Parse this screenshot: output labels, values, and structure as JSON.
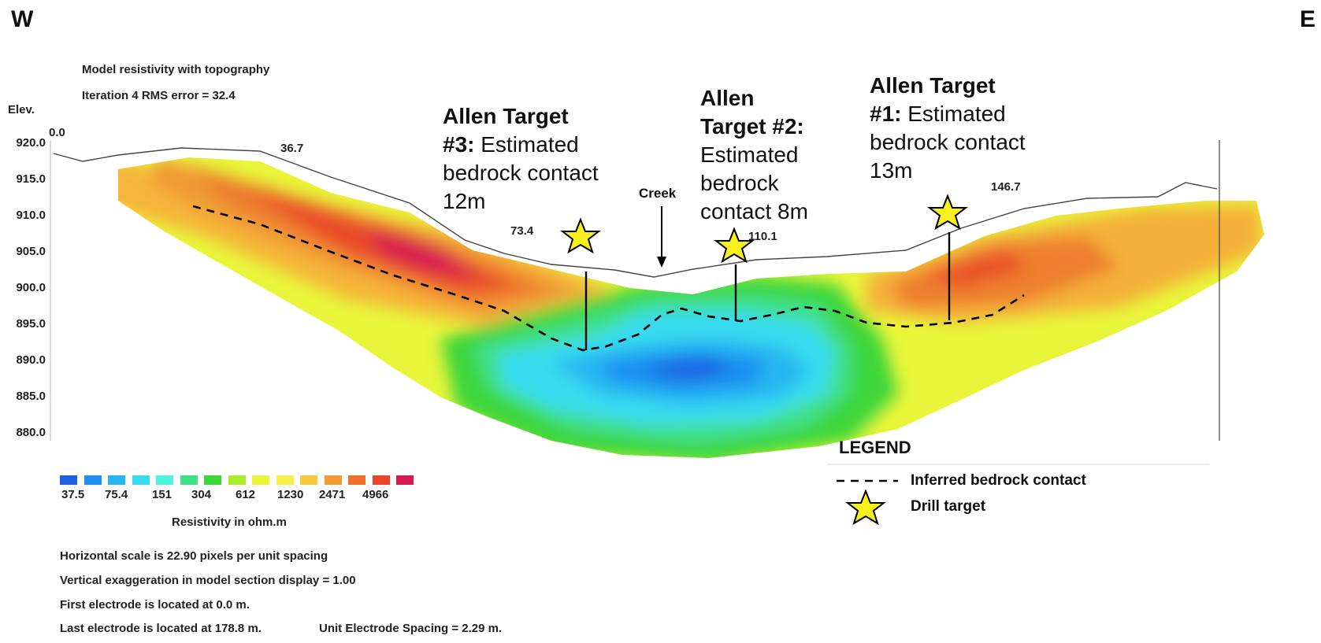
{
  "direction": {
    "west": "W",
    "east": "E"
  },
  "header": {
    "title": "Model resistivity with topography",
    "iteration": "Iteration 4 RMS error = 32.4",
    "elev_label": "Elev."
  },
  "elevation_ticks": [
    "920.0",
    "915.0",
    "910.0",
    "905.0",
    "900.0",
    "895.0",
    "890.0",
    "885.0",
    "880.0"
  ],
  "distance_labels": [
    "0.0",
    "36.7",
    "73.4",
    "110.1",
    "146.7"
  ],
  "creek_label": "Creek",
  "targets": [
    {
      "title": "Allen Target",
      "title2": "#3:",
      "rest": "Estimated",
      "line3": "bedrock contact",
      "line4": "12m"
    },
    {
      "title": "Allen",
      "title2": "Target #2:",
      "rest": "Estimated",
      "line3": "bedrock",
      "line4": "contact 8m"
    },
    {
      "title": "Allen Target",
      "title2": "#1:",
      "rest": "Estimated",
      "line3": "bedrock contact",
      "line4": "13m"
    }
  ],
  "color_scale": {
    "values": [
      "37.5",
      "75.4",
      "151",
      "304",
      "612",
      "1230",
      "2471",
      "4966"
    ],
    "colors": [
      "#1f5fe0",
      "#1f8ff0",
      "#27b6f2",
      "#39dbef",
      "#4ff2e0",
      "#43e08a",
      "#3dd63a",
      "#a8ec2e",
      "#e8f53a",
      "#f7f04a",
      "#f6c83e",
      "#f29a35",
      "#ef6f2c",
      "#e9452a",
      "#d41c52"
    ],
    "label": "Resistivity in ohm.m"
  },
  "footer": {
    "line1": "Horizontal scale is 22.90 pixels per unit spacing",
    "line2": "Vertical exaggeration in model section display = 1.00",
    "line3": "First electrode is located at 0.0  m.",
    "line4": "Last electrode is located at 178.8 m.",
    "line4b": "Unit Electrode Spacing = 2.29 m."
  },
  "legend": {
    "title": "LEGEND",
    "bedrock": "Inferred bedrock contact",
    "drill": "Drill target"
  }
}
